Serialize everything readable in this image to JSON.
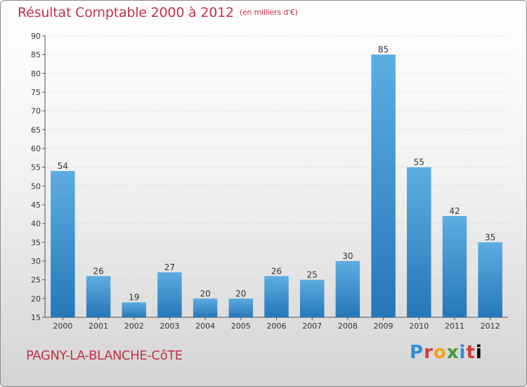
{
  "header": {
    "title": "Résultat Comptable 2000 à 2012",
    "unit": "(en milliers d'€)"
  },
  "footer": {
    "commune": "PAGNY-LA-BLANCHE-CôTE",
    "logo_letters": [
      "P",
      "r",
      "o",
      "x",
      "i",
      "t",
      "i"
    ]
  },
  "colors": {
    "title": "#c1334a",
    "bar_top": "#5dade2",
    "bar_bottom": "#2577b8"
  },
  "chart_data": {
    "type": "bar",
    "title": "Résultat Comptable 2000 à 2012",
    "xlabel": "",
    "ylabel": "",
    "categories": [
      "2000",
      "2001",
      "2002",
      "2003",
      "2004",
      "2005",
      "2006",
      "2007",
      "2008",
      "2009",
      "2010",
      "2011",
      "2012"
    ],
    "values": [
      54,
      26,
      19,
      27,
      20,
      20,
      26,
      25,
      30,
      85,
      55,
      42,
      35
    ],
    "ylim": [
      15,
      90
    ],
    "yticks": [
      15,
      20,
      25,
      30,
      35,
      40,
      45,
      50,
      55,
      60,
      65,
      70,
      75,
      80,
      85,
      90
    ],
    "grid": "horizontal"
  }
}
